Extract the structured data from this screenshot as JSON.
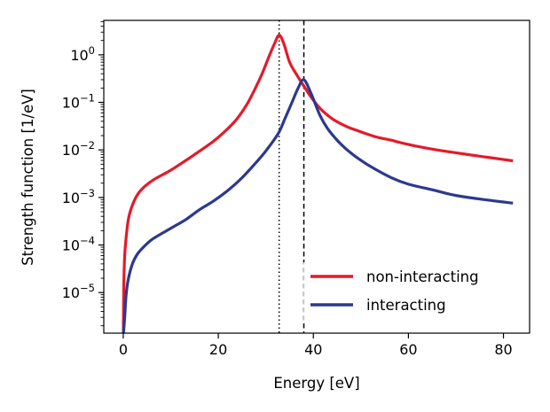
{
  "chart_data": {
    "type": "line",
    "title": "",
    "xlabel": "Energy [eV]",
    "ylabel": "Strength function [1/eV]",
    "xscale": "linear",
    "yscale": "log",
    "xlim": [
      -4.1,
      85.5
    ],
    "ylim": [
      1.4e-06,
      5.3
    ],
    "grid": false,
    "xticks": [
      0,
      20,
      40,
      60,
      80
    ],
    "xtick_labels": [
      "0",
      "20",
      "40",
      "60",
      "80"
    ],
    "yticks": [
      1e-05,
      0.0001,
      0.001,
      0.01,
      0.1,
      1
    ],
    "ytick_labels": [
      {
        "base": "10",
        "exp": "−5"
      },
      {
        "base": "10",
        "exp": "−4"
      },
      {
        "base": "10",
        "exp": "−3"
      },
      {
        "base": "10",
        "exp": "−2"
      },
      {
        "base": "10",
        "exp": "−1"
      },
      {
        "base": "10",
        "exp": "0"
      }
    ],
    "legend": {
      "placement": "lower-right",
      "frame": false
    },
    "vlines": [
      {
        "name": "non-interacting-peak",
        "x": 32.8,
        "style": "dotted",
        "color": "#000000"
      },
      {
        "name": "interacting-peak",
        "x": 38.0,
        "style": "dashed",
        "color": "#000000"
      }
    ],
    "series": [
      {
        "name": "non-interacting",
        "color": "#e41a2a",
        "x": [
          0.02,
          0.1,
          0.3,
          0.75,
          1.2,
          2,
          3,
          4.5,
          6.5,
          9.5,
          11.4,
          15,
          18.9,
          22,
          24,
          26,
          27.7,
          29.3,
          30.7,
          31.8,
          32.8,
          33.8,
          35,
          36.5,
          38,
          39.5,
          41.4,
          44,
          47,
          49,
          53,
          56.4,
          58,
          62,
          66,
          70,
          74,
          78,
          82
        ],
        "y": [
          1.4e-06,
          1.2e-05,
          6e-05,
          0.0002,
          0.0004,
          0.00072,
          0.00115,
          0.0017,
          0.0024,
          0.0035,
          0.0046,
          0.008,
          0.015,
          0.028,
          0.046,
          0.09,
          0.19,
          0.42,
          0.94,
          1.7,
          2.6,
          1.7,
          0.7,
          0.38,
          0.22,
          0.13,
          0.075,
          0.045,
          0.031,
          0.026,
          0.019,
          0.016,
          0.0145,
          0.0118,
          0.01,
          0.0087,
          0.0076,
          0.0067,
          0.0059
        ]
      },
      {
        "name": "interacting",
        "color": "#2b3990",
        "x": [
          0.05,
          0.3,
          0.6,
          1.1,
          2,
          3,
          4,
          6,
          9.5,
          11.4,
          13.3,
          16,
          18.9,
          22,
          25,
          28,
          30,
          32.6,
          34,
          35.5,
          36.8,
          38,
          39.5,
          41.4,
          43,
          45,
          47,
          49,
          52,
          56.4,
          60,
          65,
          70,
          76,
          82
        ],
        "y": [
          1.4e-06,
          3e-06,
          9e-06,
          2e-05,
          4.2e-05,
          6.5e-05,
          8.5e-05,
          0.00013,
          0.00021,
          0.00027,
          0.00035,
          0.00055,
          0.00083,
          0.0014,
          0.0026,
          0.0055,
          0.0095,
          0.022,
          0.045,
          0.1,
          0.2,
          0.3,
          0.155,
          0.053,
          0.028,
          0.016,
          0.0102,
          0.0071,
          0.0045,
          0.0026,
          0.0019,
          0.00145,
          0.0011,
          0.0009,
          0.00076
        ]
      }
    ]
  }
}
